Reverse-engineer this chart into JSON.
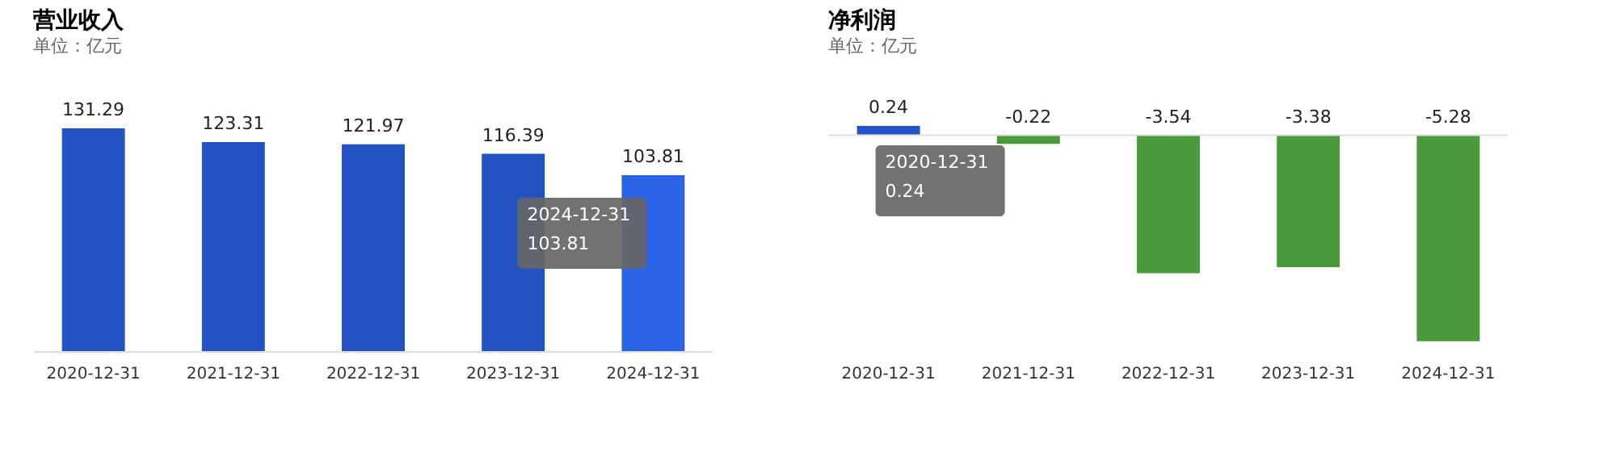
{
  "chart_data": [
    {
      "type": "bar",
      "title": "营业收入",
      "subtitle": "单位：亿元",
      "categories": [
        "2020-12-31",
        "2021-12-31",
        "2022-12-31",
        "2023-12-31",
        "2024-12-31"
      ],
      "values": [
        131.29,
        123.31,
        121.97,
        116.39,
        103.81
      ],
      "colors": [
        "#2452c4",
        "#2452c4",
        "#2452c4",
        "#2452c4",
        "#2a63e6"
      ],
      "data_labels": true,
      "annotations": [
        {
          "text": "2024-12-31\n103.81",
          "x": "2024-12-31",
          "y": 103.81
        }
      ]
    },
    {
      "type": "bar",
      "title": "净利润",
      "subtitle": "单位：亿元",
      "categories": [
        "2020-12-31",
        "2021-12-31",
        "2022-12-31",
        "2023-12-31",
        "2024-12-31"
      ],
      "values": [
        0.24,
        -0.22,
        -3.54,
        -3.38,
        -5.28
      ],
      "colors": [
        "#2452c4",
        "#4a9a3c",
        "#4a9a3c",
        "#4a9a3c",
        "#4a9a3c"
      ],
      "data_labels": true,
      "annotations": [
        {
          "text": "2020-12-31\n0.24",
          "x": "2020-12-31",
          "y": 0.24
        }
      ]
    }
  ]
}
